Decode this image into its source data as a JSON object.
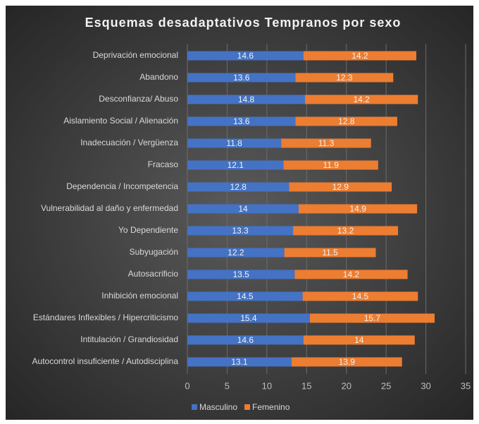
{
  "chart_data": {
    "type": "bar",
    "orientation": "horizontal",
    "stacked": true,
    "title": "Esquemas desadaptativos Tempranos por sexo",
    "categories": [
      "Deprivación emocional",
      "Abandono",
      "Desconfianza/ Abuso",
      "Aislamiento Social / Alienación",
      "Inadecuación / Vergüenza",
      "Fracaso",
      "Dependencia / Incompetencia",
      "Vulnerabilidad al daño y enfermedad",
      "Yo Dependiente",
      "Subyugación",
      "Autosacrificio",
      "Inhibición emocional",
      "Estándares Inflexibles / Hipercriticismo",
      "Intitulación / Grandiosidad",
      "Autocontrol insuficiente / Autodisciplina"
    ],
    "series": [
      {
        "name": "Masculino",
        "color": "#4472c4",
        "values": [
          14.6,
          13.6,
          14.8,
          13.6,
          11.8,
          12.1,
          12.8,
          14,
          13.3,
          12.2,
          13.5,
          14.5,
          15.4,
          14.6,
          13.1
        ]
      },
      {
        "name": "Femenino",
        "color": "#ed7d31",
        "values": [
          14.2,
          12.3,
          14.2,
          12.8,
          11.3,
          11.9,
          12.9,
          14.9,
          13.2,
          11.5,
          14.2,
          14.5,
          15.7,
          14,
          13.9
        ]
      }
    ],
    "xlim": [
      0,
      35
    ],
    "xticks": [
      0,
      5,
      10,
      15,
      20,
      25,
      30,
      35
    ],
    "grid": true,
    "legend": "bottom"
  }
}
